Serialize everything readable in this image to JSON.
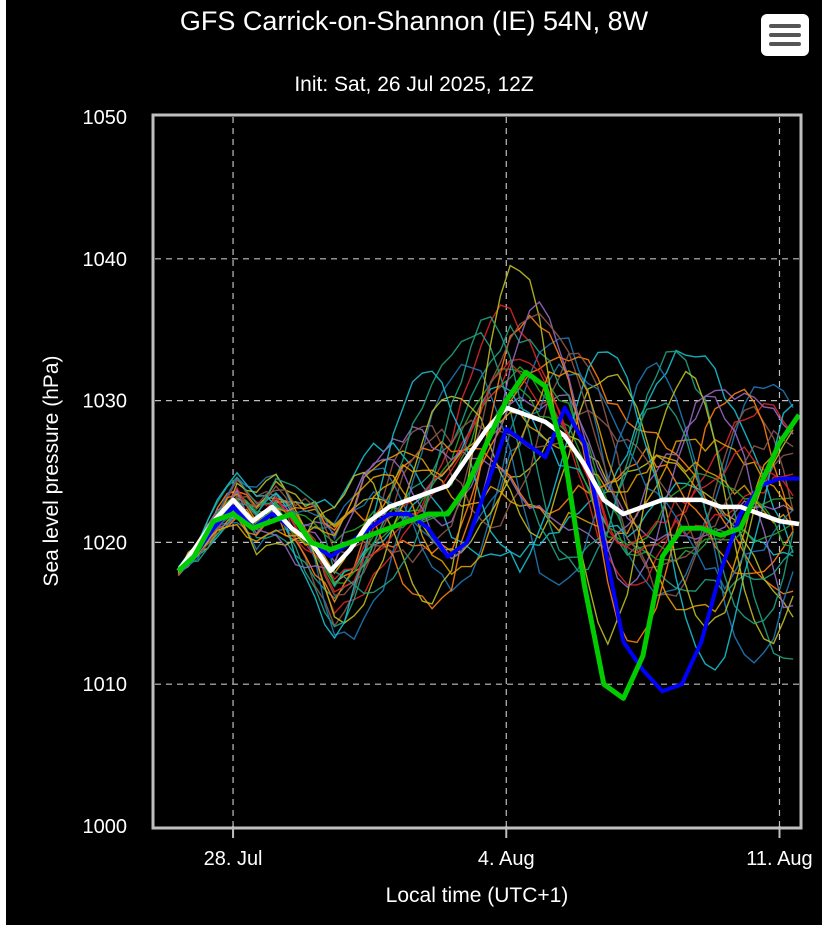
{
  "colors": {
    "background": "#000000",
    "text": "#ffffff",
    "grid": "#bfbfbf",
    "mean_line": "#ffffff",
    "control_line": "#0000ff",
    "operational_line": "#00cc00",
    "member_palette": [
      "#1f77b4",
      "#17becf",
      "#2ca02c",
      "#ff7f0e",
      "#d62728",
      "#bcbd22",
      "#9467bd",
      "#8c564b",
      "#1fa080",
      "#e0a000"
    ]
  },
  "menu": {
    "icon": "hamburger-menu-icon"
  },
  "chart_data": {
    "type": "line",
    "title": "GFS Carrick-on-Shannon (IE) 54N, 8W",
    "subtitle": "Init: Sat, 26 Jul 2025, 12Z",
    "xlabel": "Local time (UTC+1)",
    "ylabel": "Sea level pressure (hPa)",
    "ylim": [
      1000,
      1050
    ],
    "xlim_days": [
      0,
      16.5
    ],
    "x_ticks": [
      {
        "label": "28. Jul",
        "day": 2
      },
      {
        "label": "4. Aug",
        "day": 9
      },
      {
        "label": "11. Aug",
        "day": 16
      }
    ],
    "y_ticks": [
      1000,
      1010,
      1020,
      1030,
      1040,
      1050
    ],
    "grid": true,
    "x_unit": "days after 26 Jul 00:00 local",
    "x": [
      0.6,
      1.0,
      1.5,
      2.0,
      2.5,
      3.0,
      3.5,
      4.0,
      4.5,
      5.0,
      5.5,
      6.0,
      6.5,
      7.0,
      7.5,
      8.0,
      8.5,
      9.0,
      9.5,
      10.0,
      10.5,
      11.0,
      11.5,
      12.0,
      12.5,
      13.0,
      13.5,
      14.0,
      14.5,
      15.0,
      15.5,
      16.0,
      16.5
    ],
    "series": [
      {
        "role": "ensemble-mean",
        "values": [
          1018.0,
          1019.5,
          1021.5,
          1023.0,
          1021.5,
          1022.5,
          1021.0,
          1020.0,
          1018.0,
          1019.5,
          1021.5,
          1022.5,
          1023.0,
          1023.5,
          1024.0,
          1026.0,
          1028.0,
          1029.5,
          1029.0,
          1028.5,
          1027.5,
          1025.5,
          1023.0,
          1022.0,
          1022.5,
          1023.0,
          1023.0,
          1023.0,
          1022.5,
          1022.5,
          1022.0,
          1021.5,
          1021.3
        ]
      },
      {
        "role": "control",
        "values": [
          1018.0,
          1019.0,
          1021.0,
          1022.5,
          1021.0,
          1022.0,
          1021.0,
          1020.0,
          1019.0,
          1020.0,
          1021.0,
          1022.0,
          1022.0,
          1021.0,
          1019.0,
          1020.0,
          1024.0,
          1028.0,
          1027.0,
          1026.0,
          1029.5,
          1027.0,
          1020.0,
          1013.0,
          1011.0,
          1009.5,
          1010.0,
          1013.0,
          1018.0,
          1022.0,
          1024.0,
          1024.5,
          1024.5
        ]
      },
      {
        "role": "operational",
        "values": [
          1018.0,
          1019.0,
          1021.5,
          1022.0,
          1021.0,
          1021.5,
          1022.0,
          1020.0,
          1019.5,
          1020.0,
          1020.5,
          1021.0,
          1021.5,
          1022.0,
          1022.0,
          1024.0,
          1027.0,
          1030.0,
          1032.0,
          1031.0,
          1026.0,
          1017.0,
          1010.0,
          1009.0,
          1012.0,
          1019.0,
          1021.0,
          1021.0,
          1020.5,
          1021.0,
          1024.0,
          1027.0,
          1029.0
        ]
      }
    ]
  }
}
